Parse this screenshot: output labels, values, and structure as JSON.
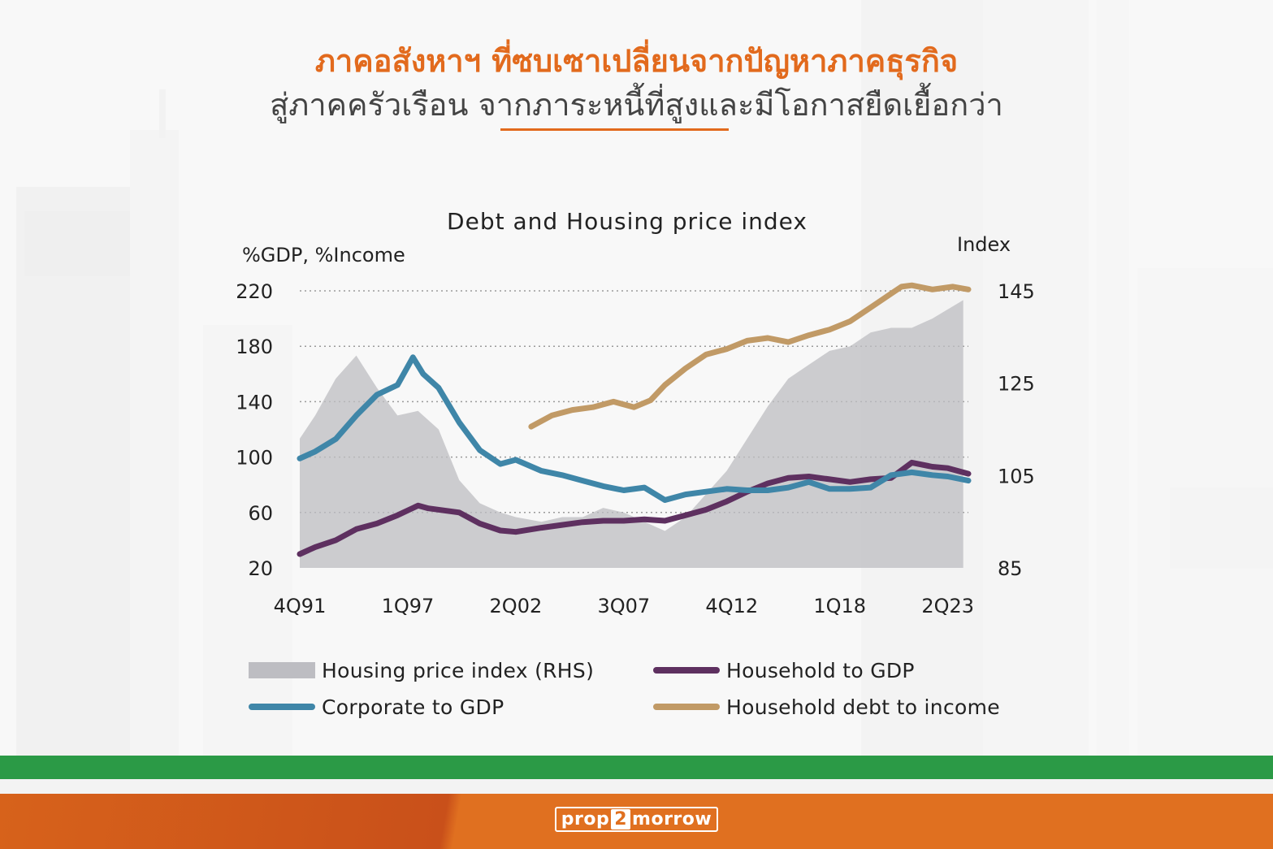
{
  "header": {
    "line1": "ภาคอสังหาฯ ที่ซบเซาเปลี่ยนจากปัญหาภาคธุรกิจ",
    "line2": "สู่ภาคครัวเรือน จากภาระหนี้ที่สูงและมีโอกาสยืดเยื้อกว่า"
  },
  "footer": {
    "logo_prefix": "prop",
    "logo_num": "2",
    "logo_suffix": "morrow"
  },
  "colors": {
    "accent_orange": "#e26a1d",
    "green_band": "#2b9a46",
    "housing": "#bdbdc2",
    "household_gdp": "#5e3060",
    "corporate_gdp": "#3f86a8",
    "household_income": "#c19a66"
  },
  "chart_data": {
    "type": "line",
    "title": "Debt and Housing price index",
    "ylabel": "%GDP, %Income",
    "ylabel_right": "Index",
    "x_start": 1991.75,
    "x_end": 2024.25,
    "x_ticks": [
      {
        "label": "4Q91",
        "x": 1991.75
      },
      {
        "label": "1Q97",
        "x": 1997.0
      },
      {
        "label": "2Q02",
        "x": 2002.25
      },
      {
        "label": "3Q07",
        "x": 2007.5
      },
      {
        "label": "4Q12",
        "x": 2012.75
      },
      {
        "label": "1Q18",
        "x": 2018.0
      },
      {
        "label": "2Q23",
        "x": 2023.25
      }
    ],
    "ylim": [
      20,
      220
    ],
    "yticks": [
      220,
      180,
      140,
      100,
      60,
      20
    ],
    "ylim_right": [
      85,
      145
    ],
    "yticks_right": [
      145,
      125,
      105,
      85
    ],
    "grid": true,
    "legend": "bottom",
    "series": [
      {
        "name": "Housing price index (RHS)",
        "kind": "area",
        "axis": "right",
        "x": [
          1991.75,
          1992.5,
          1993.5,
          1994.5,
          1995.5,
          1996.5,
          1997.5,
          1998.5,
          1999.5,
          2000.5,
          2001.5,
          2002.25,
          2003.5,
          2004.5,
          2005.5,
          2006.5,
          2007.5,
          2008.5,
          2009.5,
          2010.5,
          2011.5,
          2012.5,
          2013.5,
          2014.5,
          2015.5,
          2016.5,
          2017.5,
          2018.5,
          2019.5,
          2020.5,
          2021.5,
          2022.5,
          2023.25,
          2024.0
        ],
        "y": [
          113,
          118,
          126,
          131,
          124,
          118,
          119,
          115,
          104,
          99,
          97,
          96,
          95,
          96,
          96,
          98,
          97,
          95,
          93,
          96,
          101,
          106,
          113,
          120,
          126,
          129,
          132,
          133,
          136,
          137,
          137,
          139,
          141,
          143
        ]
      },
      {
        "name": "Household to GDP",
        "kind": "line",
        "axis": "left",
        "x": [
          1991.75,
          1992.5,
          1993.5,
          1994.5,
          1995.5,
          1996.5,
          1997.5,
          1998.0,
          1999.5,
          2000.5,
          2001.5,
          2002.25,
          2003.5,
          2004.5,
          2005.5,
          2006.5,
          2007.5,
          2008.5,
          2009.5,
          2010.5,
          2011.5,
          2012.5,
          2013.5,
          2014.5,
          2015.5,
          2016.5,
          2017.5,
          2018.5,
          2019.5,
          2020.5,
          2021.5,
          2022.5,
          2023.25,
          2024.25
        ],
        "y": [
          30,
          35,
          40,
          48,
          52,
          58,
          65,
          63,
          60,
          52,
          47,
          46,
          49,
          51,
          53,
          54,
          54,
          55,
          54,
          58,
          62,
          68,
          75,
          81,
          85,
          86,
          84,
          82,
          84,
          85,
          96,
          93,
          92,
          88
        ]
      },
      {
        "name": "Corporate to GDP",
        "kind": "line",
        "axis": "left",
        "x": [
          1991.75,
          1992.5,
          1993.5,
          1994.5,
          1995.5,
          1996.5,
          1997.25,
          1997.75,
          1998.5,
          1999.5,
          2000.5,
          2001.5,
          2002.25,
          2003.5,
          2004.5,
          2005.5,
          2006.5,
          2007.5,
          2008.5,
          2009.5,
          2010.5,
          2011.5,
          2012.5,
          2013.5,
          2014.5,
          2015.5,
          2016.5,
          2017.5,
          2018.5,
          2019.5,
          2020.5,
          2021.5,
          2022.5,
          2023.25,
          2024.25
        ],
        "y": [
          99,
          104,
          113,
          130,
          145,
          152,
          172,
          160,
          150,
          125,
          105,
          95,
          98,
          90,
          87,
          83,
          79,
          76,
          78,
          69,
          73,
          75,
          77,
          76,
          76,
          78,
          82,
          77,
          77,
          78,
          87,
          89,
          87,
          86,
          83
        ]
      },
      {
        "name": "Household debt to income",
        "kind": "line",
        "axis": "left",
        "x": [
          2003.0,
          2004.0,
          2005.0,
          2006.0,
          2007.0,
          2008.0,
          2008.8,
          2009.5,
          2010.5,
          2011.5,
          2012.5,
          2013.5,
          2014.5,
          2015.5,
          2016.5,
          2017.5,
          2018.5,
          2019.5,
          2020.5,
          2021.0,
          2021.5,
          2022.5,
          2023.5,
          2024.25
        ],
        "y": [
          122,
          130,
          134,
          136,
          140,
          136,
          141,
          152,
          164,
          174,
          178,
          184,
          186,
          183,
          188,
          192,
          198,
          208,
          218,
          223,
          224,
          221,
          223,
          221
        ]
      }
    ]
  }
}
